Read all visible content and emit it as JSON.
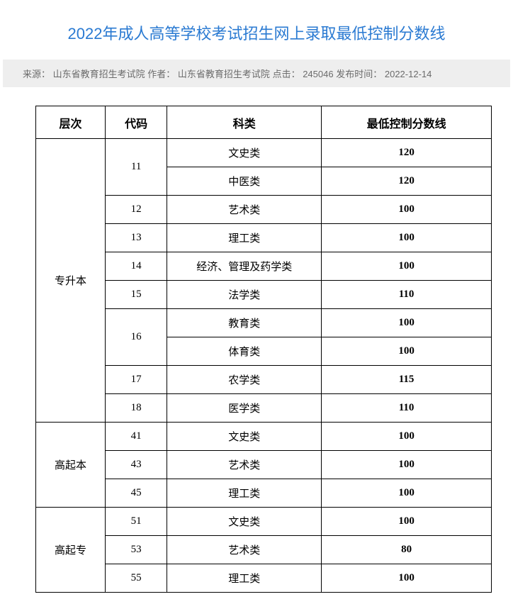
{
  "title": {
    "text": "2022年成人高等学校考试招生网上录取最低控制分数线",
    "color": "#2a7ad2"
  },
  "meta": {
    "bg": "#eeeeee",
    "color": "#6b6b6b",
    "source_label": "来源：",
    "source": "山东省教育招生考试院",
    "author_label": "作者：",
    "author": "山东省教育招生考试院",
    "clicks_label": "点击：",
    "clicks": "245046",
    "time_label": "发布时间：",
    "time": "2022-12-14"
  },
  "table": {
    "headers": {
      "level": "层次",
      "code": "代码",
      "category": "科类",
      "score": "最低控制分数线"
    },
    "rows": [
      {
        "level": "专升本",
        "code": "11",
        "category": "文史类",
        "score": "120"
      },
      {
        "level": "",
        "code": "",
        "category": "中医类",
        "score": "120"
      },
      {
        "level": "",
        "code": "12",
        "category": "艺术类",
        "score": "100"
      },
      {
        "level": "",
        "code": "13",
        "category": "理工类",
        "score": "100"
      },
      {
        "level": "",
        "code": "14",
        "category": "经济、管理及药学类",
        "score": "100"
      },
      {
        "level": "",
        "code": "15",
        "category": "法学类",
        "score": "110"
      },
      {
        "level": "",
        "code": "16",
        "category": "教育类",
        "score": "100"
      },
      {
        "level": "",
        "code": "",
        "category": "体育类",
        "score": "100"
      },
      {
        "level": "",
        "code": "17",
        "category": "农学类",
        "score": "115"
      },
      {
        "level": "",
        "code": "18",
        "category": "医学类",
        "score": "110"
      },
      {
        "level": "高起本",
        "code": "41",
        "category": "文史类",
        "score": "100"
      },
      {
        "level": "",
        "code": "43",
        "category": "艺术类",
        "score": "100"
      },
      {
        "level": "",
        "code": "45",
        "category": "理工类",
        "score": "100"
      },
      {
        "level": "高起专",
        "code": "51",
        "category": "文史类",
        "score": "100"
      },
      {
        "level": "",
        "code": "53",
        "category": "艺术类",
        "score": "80"
      },
      {
        "level": "",
        "code": "55",
        "category": "理工类",
        "score": "100"
      }
    ]
  }
}
